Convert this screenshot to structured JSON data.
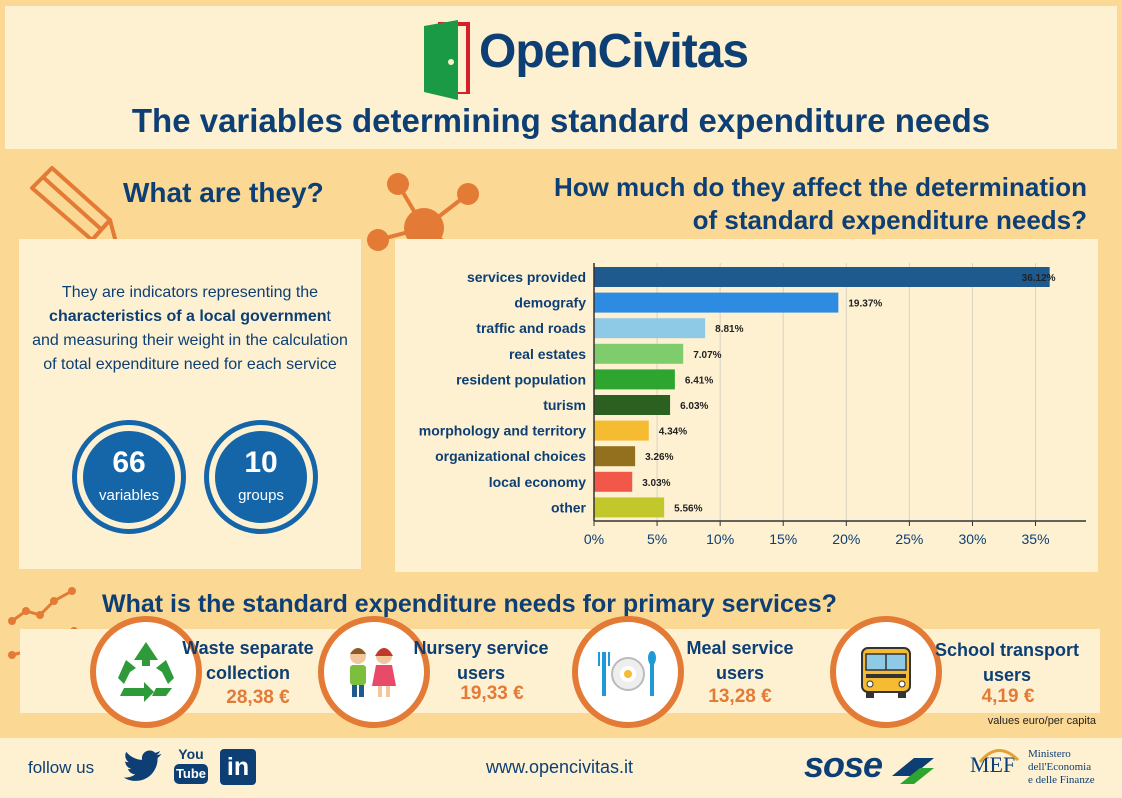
{
  "header": {
    "brand": "OpenCivitas",
    "title": "The variables determining standard expenditure needs"
  },
  "what": {
    "heading": "What are they?",
    "desc_pre": "They are indicators representing the",
    "desc_bold": "characteristics of a local governmen",
    "desc_bold_tail": "t",
    "desc_post": "and measuring their weight in the calculation of total expenditure need for each service",
    "stats": [
      {
        "value": "66",
        "label": "variables"
      },
      {
        "value": "10",
        "label": "groups"
      }
    ]
  },
  "how": {
    "heading_line1": "How much do they affect the determination",
    "heading_line2": "of standard expenditure needs?"
  },
  "chart_data": {
    "type": "bar",
    "orientation": "horizontal",
    "categories": [
      "services provided",
      "demografy",
      "traffic and roads",
      "real estates",
      "resident population",
      "turism",
      "morphology and territory",
      "organizational choices",
      "local economy",
      "other"
    ],
    "values": [
      36.12,
      19.37,
      8.81,
      7.07,
      6.41,
      6.03,
      4.34,
      3.26,
      3.03,
      5.56
    ],
    "value_labels": [
      "36.12%",
      "19.37%",
      "8.81%",
      "7.07%",
      "6.41%",
      "6.03%",
      "4.34%",
      "3.26%",
      "3.03%",
      "5.56%"
    ],
    "colors": [
      "#1f5a8e",
      "#2e8be2",
      "#8ecae6",
      "#7fcc6c",
      "#2ea52e",
      "#2b6021",
      "#f5bb31",
      "#93701d",
      "#f2584a",
      "#c2c72b"
    ],
    "xlim": [
      0,
      39
    ],
    "xticks": [
      0,
      5,
      10,
      15,
      20,
      25,
      30,
      35
    ],
    "xtick_labels": [
      "0%",
      "5%",
      "10%",
      "15%",
      "20%",
      "25%",
      "30%",
      "35%"
    ],
    "grid": true
  },
  "services": {
    "heading": "What is the standard expenditure needs for primary services?",
    "items": [
      {
        "name_line1": "Waste separate",
        "name_line2": "collection",
        "value": "28,38 €",
        "icon": "recycle-icon"
      },
      {
        "name_line1": "Nursery service",
        "name_line2": "users",
        "value": "19,33 €",
        "icon": "children-icon"
      },
      {
        "name_line1": "Meal service",
        "name_line2": "users",
        "value": "13,28 €",
        "icon": "meal-icon"
      },
      {
        "name_line1": "School transport",
        "name_line2": "users",
        "value": "4,19 €",
        "icon": "bus-icon"
      }
    ],
    "note": "values euro/per capita"
  },
  "footer": {
    "follow": "follow us",
    "youtube_top": "You",
    "youtube_bottom": "Tube",
    "linkedin": "in",
    "url": "www.opencivitas.it",
    "sose": "sose",
    "mef": "MEF",
    "ministry_line1": "Ministero",
    "ministry_line2": "dell'Economia",
    "ministry_line3": "e delle Finanze"
  }
}
